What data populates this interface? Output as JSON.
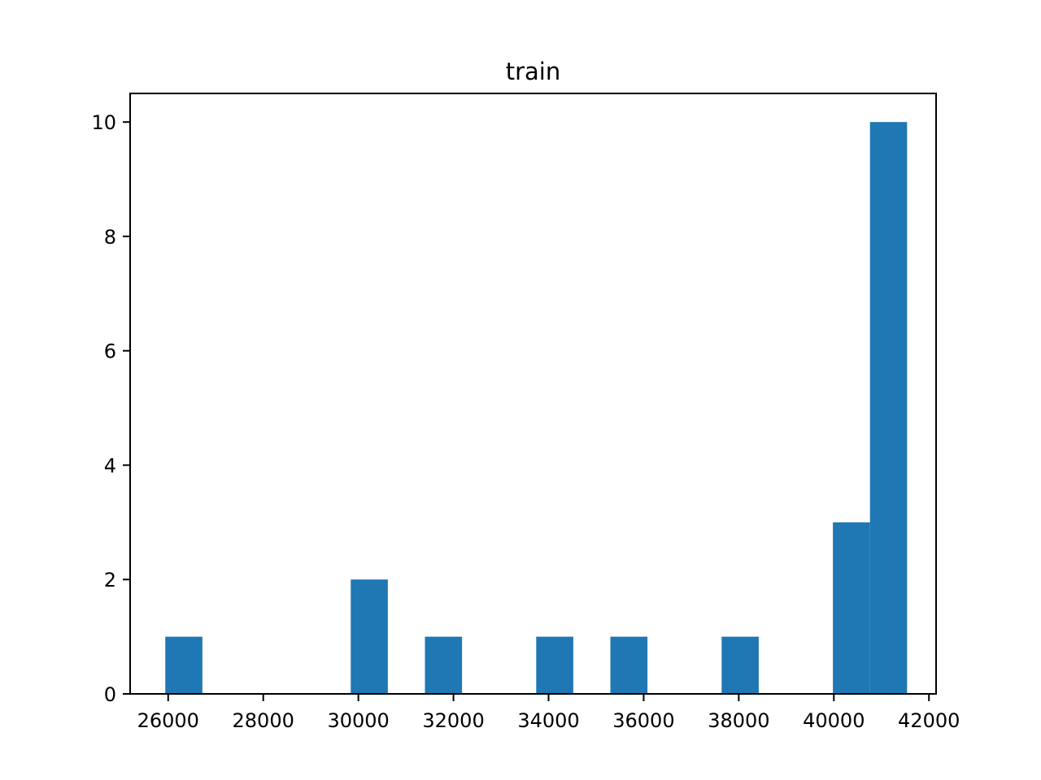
{
  "chart_data": {
    "type": "bar",
    "title": "train",
    "xlabel": "",
    "ylabel": "",
    "xlim": [
      25200,
      42150
    ],
    "ylim": [
      0,
      10.5
    ],
    "bar_color": "#1f77b4",
    "bin_width": 780,
    "bins": [
      {
        "x_start": 25940,
        "count": 1
      },
      {
        "x_start": 29840,
        "count": 2
      },
      {
        "x_start": 31400,
        "count": 1
      },
      {
        "x_start": 33740,
        "count": 1
      },
      {
        "x_start": 35300,
        "count": 1
      },
      {
        "x_start": 37640,
        "count": 1
      },
      {
        "x_start": 39980,
        "count": 3
      },
      {
        "x_start": 40760,
        "count": 10
      }
    ],
    "x_ticks": [
      26000,
      28000,
      30000,
      32000,
      34000,
      36000,
      38000,
      40000,
      42000
    ],
    "x_tick_labels": [
      "26000",
      "28000",
      "30000",
      "32000",
      "34000",
      "36000",
      "38000",
      "40000",
      "42000"
    ],
    "y_ticks": [
      0,
      2,
      4,
      6,
      8,
      10
    ],
    "y_tick_labels": [
      "0",
      "2",
      "4",
      "6",
      "8",
      "10"
    ]
  }
}
